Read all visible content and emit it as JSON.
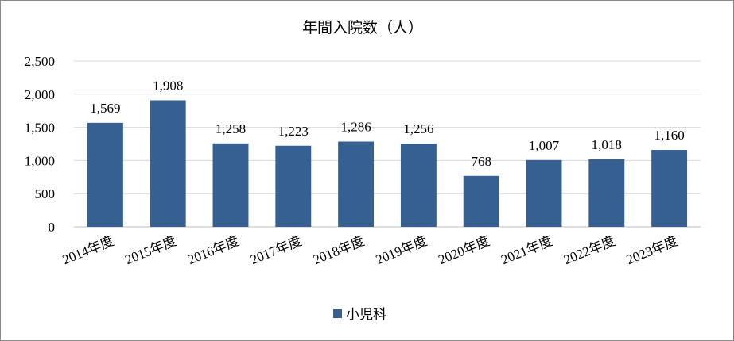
{
  "chart_data": {
    "type": "bar",
    "title": "年間入院数（人）",
    "categories": [
      "2014年度",
      "2015年度",
      "2016年度",
      "2017年度",
      "2018年度",
      "2019年度",
      "2020年度",
      "2021年度",
      "2022年度",
      "2023年度"
    ],
    "series": [
      {
        "name": "小児科",
        "color": "#376092",
        "values": [
          1569,
          1908,
          1258,
          1223,
          1286,
          1256,
          768,
          1007,
          1018,
          1160
        ],
        "labels": [
          "1,569",
          "1,908",
          "1,258",
          "1,223",
          "1,286",
          "1,256",
          "768",
          "1,007",
          "1,018",
          "1,160"
        ]
      }
    ],
    "ylim": [
      0,
      2500
    ],
    "yticks": [
      0,
      500,
      1000,
      1500,
      2000,
      2500
    ],
    "ytick_labels": [
      "0",
      "500",
      "1,000",
      "1,500",
      "2,000",
      "2,500"
    ],
    "xlabel": "",
    "ylabel": "",
    "grid": true,
    "legend": "bottom"
  }
}
